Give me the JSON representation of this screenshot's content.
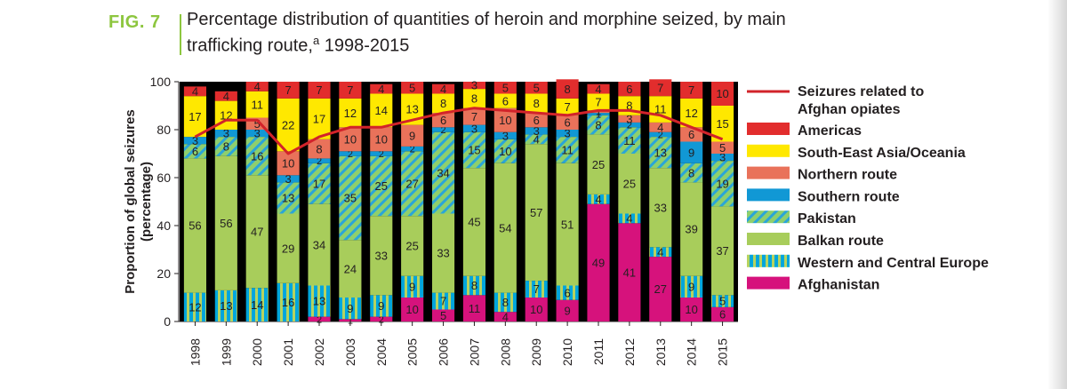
{
  "figure": {
    "label": "FIG. 7",
    "title_main": "Percentage distribution of quantities of heroin and morphine seized, by main trafficking route,",
    "title_sup": "a",
    "title_tail": " 1998-2015"
  },
  "colors": {
    "Afghanistan": "#d6127c",
    "Western and Central Europe": "#00a6dc",
    "Western and Central Europe stripe": "#b6d35f",
    "Balkan route": "#a8cd5b",
    "Pakistan": "#8ecf6d",
    "Pakistan stripe": "#2aa5d8",
    "Southern route": "#1198d5",
    "Northern route": "#e9725a",
    "South-East Asia/Oceania": "#ffe800",
    "Americas": "#e22d2d",
    "line": "#d2232a",
    "background": "#000000"
  },
  "chart_data": {
    "type": "bar",
    "stacked": true,
    "ylabel": "Proportion of global seizures (percentage)",
    "ylim": [
      0,
      100
    ],
    "yticks": [
      0,
      20,
      40,
      60,
      80,
      100
    ],
    "categories": [
      "1998",
      "1999",
      "2000",
      "2001",
      "2002",
      "2003",
      "2004",
      "2005",
      "2006",
      "2007",
      "2008",
      "2009",
      "2010",
      "2011",
      "2012",
      "2013",
      "2014",
      "2015"
    ],
    "series": [
      {
        "name": "Afghanistan",
        "values": [
          0,
          0,
          0,
          0,
          2,
          1,
          2,
          10,
          5,
          11,
          4,
          10,
          9,
          49,
          41,
          27,
          10,
          6
        ]
      },
      {
        "name": "Western and Central Europe",
        "values": [
          12,
          13,
          14,
          16,
          13,
          9,
          9,
          9,
          7,
          8,
          8,
          7,
          6,
          4,
          4,
          4,
          9,
          5
        ]
      },
      {
        "name": "Balkan route",
        "values": [
          56,
          56,
          47,
          29,
          34,
          24,
          33,
          25,
          33,
          45,
          54,
          57,
          51,
          25,
          25,
          33,
          39,
          37
        ]
      },
      {
        "name": "Pakistan",
        "values": [
          6,
          8,
          16,
          13,
          17,
          35,
          25,
          27,
          34,
          15,
          10,
          4,
          11,
          8,
          11,
          13,
          8,
          19
        ]
      },
      {
        "name": "Southern route",
        "values": [
          3,
          3,
          3,
          3,
          2,
          2,
          2,
          2,
          2,
          3,
          3,
          3,
          3,
          1,
          2,
          2,
          9,
          3
        ]
      },
      {
        "name": "Northern route",
        "values": [
          0,
          0,
          5,
          10,
          8,
          10,
          10,
          9,
          6,
          7,
          10,
          6,
          6,
          1,
          3,
          4,
          6,
          5
        ]
      },
      {
        "name": "South-East Asia/Oceania",
        "values": [
          17,
          12,
          11,
          22,
          17,
          12,
          14,
          13,
          8,
          8,
          6,
          8,
          7,
          7,
          8,
          11,
          12,
          15
        ]
      },
      {
        "name": "Americas",
        "values": [
          4,
          4,
          4,
          7,
          7,
          7,
          4,
          5,
          4,
          3,
          5,
          5,
          8,
          4,
          6,
          7,
          7,
          10
        ]
      }
    ],
    "line_series": {
      "name": "Seizures related to Afghan opiates",
      "values": [
        77,
        84,
        84,
        70,
        77,
        81,
        81,
        84,
        87,
        89,
        88,
        87,
        86,
        88,
        88,
        86,
        81,
        76
      ]
    },
    "legend": [
      {
        "name": "Seizures related to Afghan opiates",
        "marker": "line"
      },
      {
        "name": "Americas",
        "marker": "solid"
      },
      {
        "name": "South-East Asia/Oceania",
        "marker": "solid"
      },
      {
        "name": "Northern route",
        "marker": "solid"
      },
      {
        "name": "Southern route",
        "marker": "solid"
      },
      {
        "name": "Pakistan",
        "marker": "hatch"
      },
      {
        "name": "Balkan route",
        "marker": "solid"
      },
      {
        "name": "Western and Central Europe",
        "marker": "stripe"
      },
      {
        "name": "Afghanistan",
        "marker": "solid"
      }
    ],
    "legend_position": "right"
  }
}
